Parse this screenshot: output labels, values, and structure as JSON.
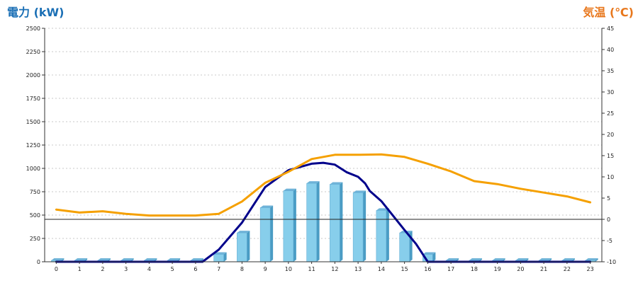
{
  "chart_data": {
    "type": "bar",
    "title": "",
    "left_axis": {
      "label": "電力 (kW)",
      "color": "#1a6fb5",
      "ylim": [
        0,
        2500
      ],
      "ticks": [
        "0",
        "250",
        "500",
        "750",
        "1000",
        "1250",
        "1500",
        "1750",
        "2000",
        "2250",
        "2500"
      ]
    },
    "right_axis": {
      "label": "気温 (℃)",
      "color": "#e8771c",
      "ylim": [
        -10,
        45
      ],
      "ticks": [
        "-10",
        "-5",
        "0",
        "5",
        "10",
        "15",
        "20",
        "25",
        "30",
        "35",
        "40",
        "45"
      ]
    },
    "categories": [
      "0",
      "1",
      "2",
      "3",
      "4",
      "5",
      "6",
      "7",
      "8",
      "9",
      "10",
      "11",
      "12",
      "13",
      "14",
      "15",
      "16",
      "17",
      "18",
      "19",
      "20",
      "21",
      "22",
      "23"
    ],
    "grid": "horizontal-dashed",
    "series": [
      {
        "kind": "bar",
        "axis": "left",
        "color": "#87ceeb",
        "values": [
          0,
          0,
          0,
          0,
          0,
          0,
          0,
          80,
          310,
          580,
          760,
          840,
          830,
          740,
          550,
          310,
          80,
          0,
          0,
          0,
          0,
          0,
          0,
          0
        ]
      },
      {
        "kind": "line",
        "axis": "left",
        "color": "#00008b",
        "x": [
          0,
          6.3,
          7,
          8,
          9,
          10,
          11,
          11.5,
          12,
          12.5,
          13,
          13.3,
          13.5,
          14,
          15,
          15.5,
          16,
          23
        ],
        "values": [
          0,
          0,
          130,
          420,
          800,
          980,
          1050,
          1060,
          1040,
          960,
          910,
          840,
          760,
          650,
          340,
          190,
          0,
          0
        ]
      },
      {
        "kind": "line",
        "axis": "right",
        "color": "#f5a000",
        "x": [
          0,
          1,
          2,
          3,
          4,
          5,
          6,
          7,
          8,
          9,
          10,
          11,
          12,
          13,
          14,
          15,
          16,
          17,
          18,
          19,
          20,
          21,
          22,
          23
        ],
        "values": [
          2.3,
          1.6,
          1.9,
          1.3,
          0.9,
          0.9,
          0.9,
          1.3,
          4.2,
          8.6,
          11.2,
          14.2,
          15.2,
          15.2,
          15.3,
          14.7,
          13.1,
          11.3,
          9.0,
          8.3,
          7.2,
          6.3,
          5.4,
          4.0
        ]
      }
    ]
  }
}
